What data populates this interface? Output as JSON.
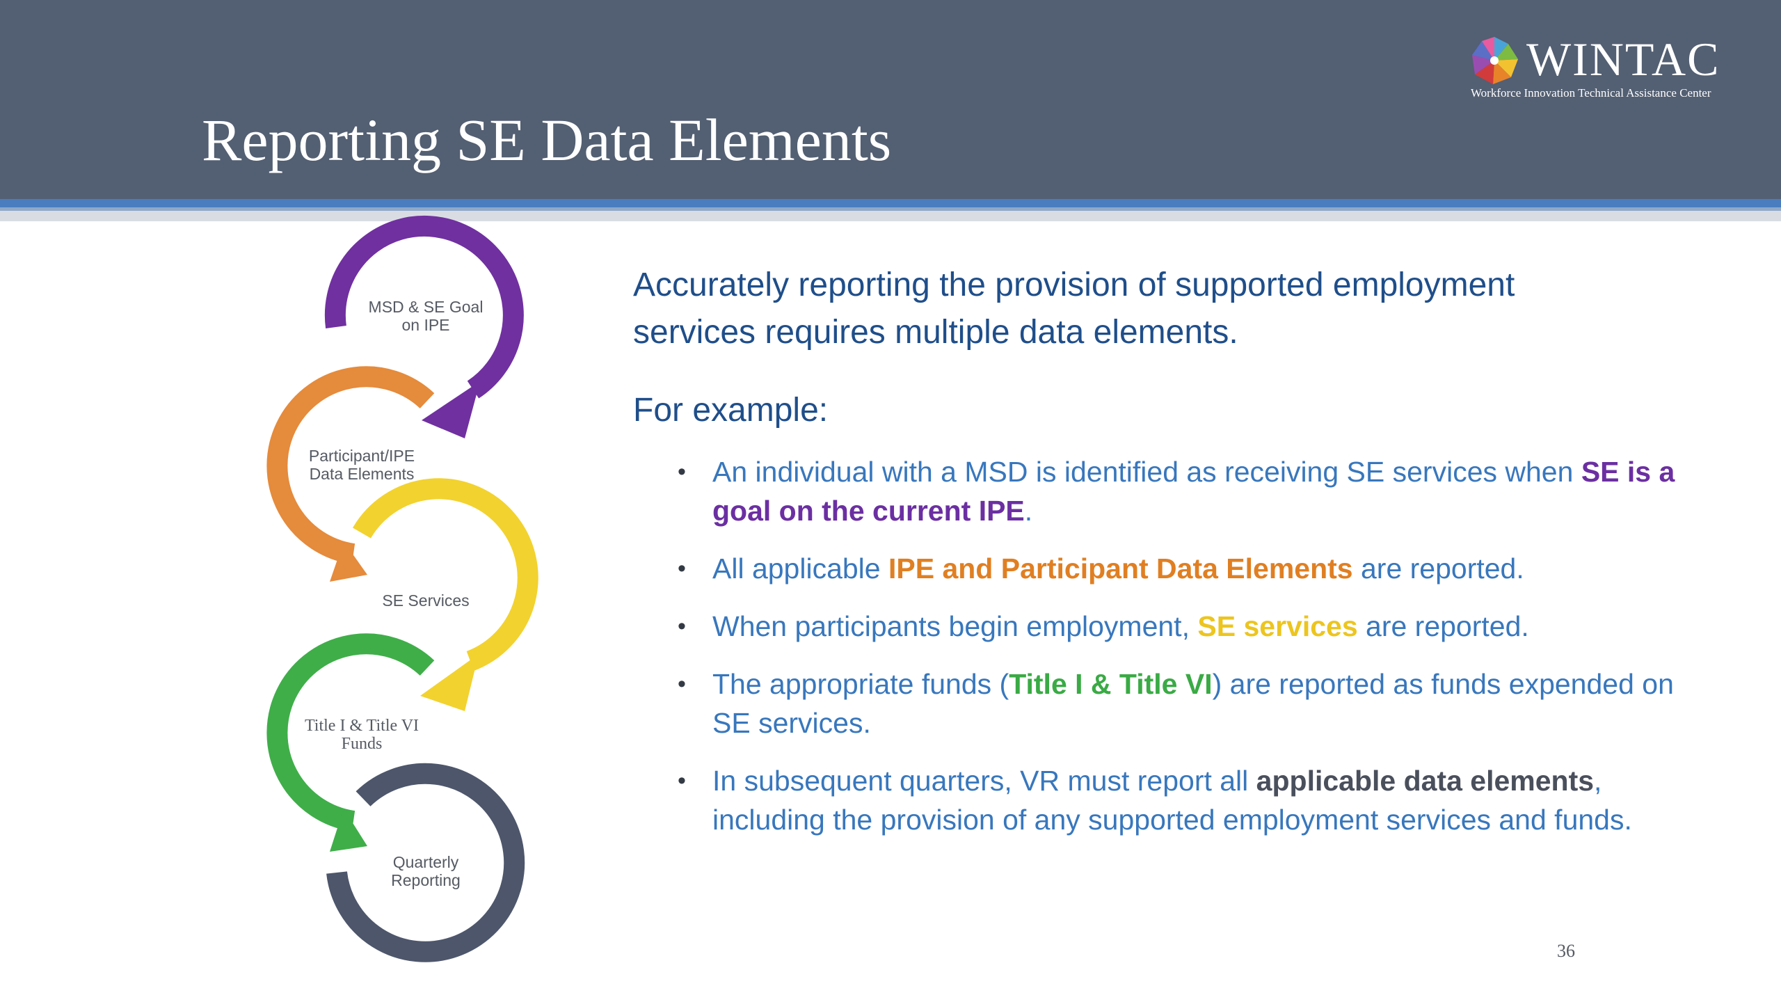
{
  "slide": {
    "title": "Reporting SE Data Elements",
    "page_number": "36"
  },
  "logo": {
    "name": "WINTAC",
    "subtitle": "Workforce Innovation Technical Assistance Center",
    "icon": "pinwheel-icon"
  },
  "cycle": {
    "steps": [
      {
        "line1": "MSD & SE Goal",
        "line2": "on IPE",
        "color": "#7030a0"
      },
      {
        "line1": "Participant/IPE",
        "line2": "Data Elements",
        "color": "#e58b3c"
      },
      {
        "line1": "SE Services",
        "line2": "",
        "color": "#f2d22e"
      },
      {
        "line1": "Title I & Title VI",
        "line2": "Funds",
        "color": "#3fae49"
      },
      {
        "line1": "Quarterly",
        "line2": "Reporting",
        "color": "#4d566b"
      }
    ]
  },
  "content": {
    "intro_line1": "Accurately reporting the provision of supported employment",
    "intro_line2": "services requires multiple data elements.",
    "for_example": "For example:",
    "bullets": [
      {
        "a": "An individual with a MSD is identified as receiving SE services when ",
        "b": "SE is a goal on the current IPE",
        "c": "."
      },
      {
        "a": "All applicable ",
        "b": "IPE and Participant Data Elements",
        "c": " are reported."
      },
      {
        "a": "When participants begin employment, ",
        "b": "SE services",
        "c": " are reported."
      },
      {
        "a": "The appropriate funds (",
        "b": "Title I & Title VI",
        "c": ") are reported as funds expended on SE services."
      },
      {
        "a": "In subsequent quarters, VR must report all ",
        "b": "applicable data elements",
        "c": ", including the provision of any supported employment services and funds."
      }
    ]
  }
}
